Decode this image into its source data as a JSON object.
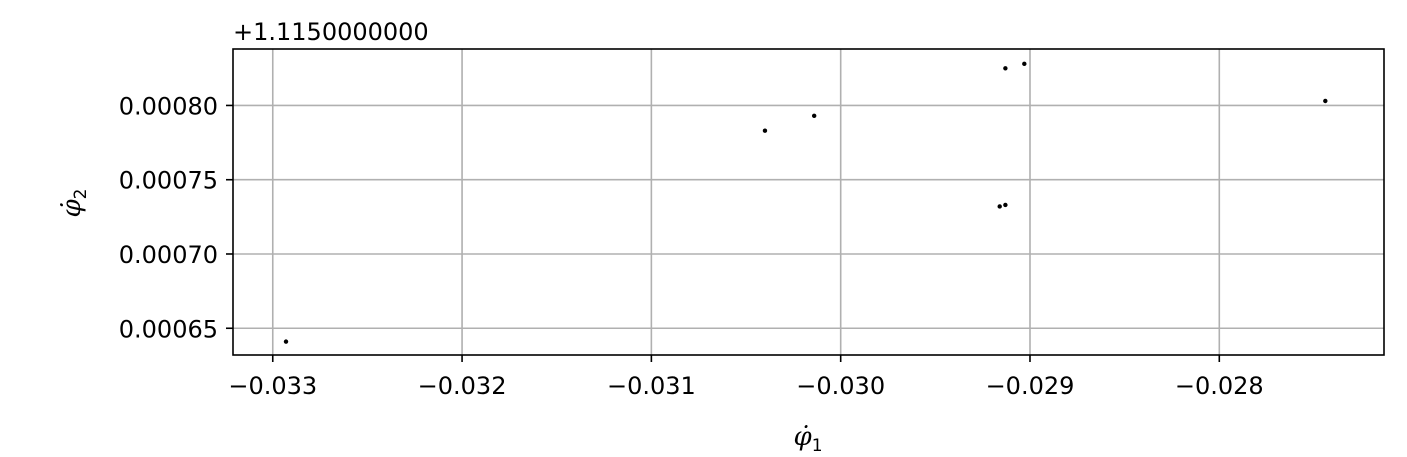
{
  "chart_data": {
    "type": "scatter",
    "title": "",
    "xlabel": "φ̇",
    "xlabel_sub": "1",
    "ylabel": "φ̇",
    "ylabel_sub": "2",
    "y_offset_text": "+1.1150000000",
    "xlim": [
      -0.03321,
      -0.02713
    ],
    "ylim": [
      0.000632,
      0.000838
    ],
    "xticks": [
      -0.033,
      -0.032,
      -0.031,
      -0.03,
      -0.029,
      -0.028
    ],
    "xtick_labels": [
      "−0.033",
      "−0.032",
      "−0.031",
      "−0.030",
      "−0.029",
      "−0.028"
    ],
    "yticks": [
      0.00065,
      0.0007,
      0.00075,
      0.0008
    ],
    "ytick_labels": [
      "0.00065",
      "0.00070",
      "0.00075",
      "0.00080"
    ],
    "grid": true,
    "marker_color": "#000000",
    "points": [
      {
        "x": -0.03293,
        "y": 0.000641
      },
      {
        "x": -0.0304,
        "y": 0.000783
      },
      {
        "x": -0.03014,
        "y": 0.000793
      },
      {
        "x": -0.02916,
        "y": 0.000732
      },
      {
        "x": -0.02913,
        "y": 0.000733
      },
      {
        "x": -0.02913,
        "y": 0.000825
      },
      {
        "x": -0.02903,
        "y": 0.000828
      },
      {
        "x": -0.02744,
        "y": 0.000803
      }
    ]
  }
}
